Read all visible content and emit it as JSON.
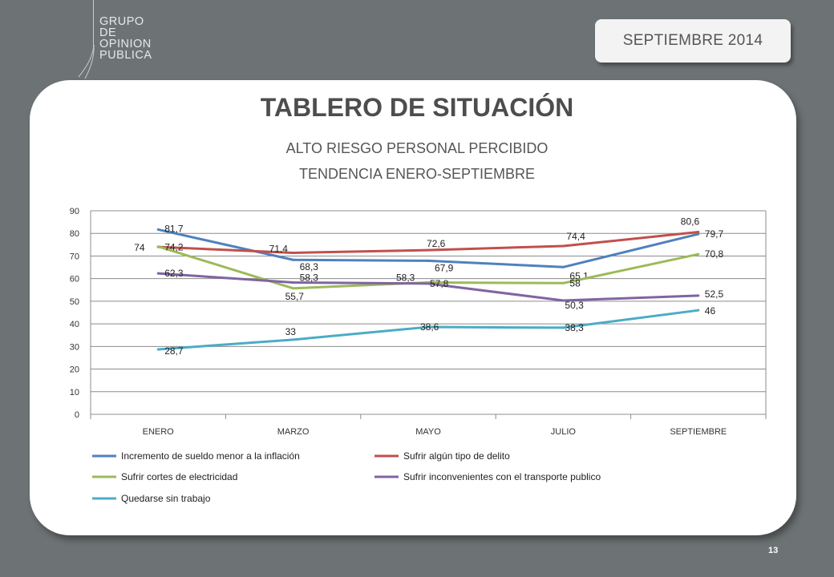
{
  "logo": {
    "lines": [
      "GRUPO",
      "DE",
      "OPINION",
      "PUBLICA"
    ]
  },
  "header": {
    "date": "SEPTIEMBRE  2014"
  },
  "page": {
    "title": "TABLERO DE SITUACIÓN",
    "number": "13"
  },
  "chart_data": {
    "type": "line",
    "title": "ALTO  RIESGO PERSONAL PERCIBIDO",
    "subtitle": "TENDENCIA ENERO-SEPTIEMBRE",
    "xlabel": "",
    "ylabel": "",
    "categories": [
      "ENERO",
      "MARZO",
      "MAYO",
      "JULIO",
      "SEPTIEMBRE"
    ],
    "ylim": [
      0,
      90
    ],
    "yticks": [
      0,
      10,
      20,
      30,
      40,
      50,
      60,
      70,
      80,
      90
    ],
    "grid": true,
    "legend_position": "bottom",
    "series": [
      {
        "name": "Incremento de sueldo menor a la inflación",
        "color": "#4f81bd",
        "values": [
          81.7,
          68.3,
          67.9,
          65.1,
          79.7
        ],
        "labels": [
          "81,7",
          "68,3",
          "67,9",
          "65,1",
          "79,7"
        ]
      },
      {
        "name": "Sufrir algún tipo de delito",
        "color": "#c0504d",
        "values": [
          74,
          71.4,
          72.6,
          74.4,
          80.6
        ],
        "labels": [
          "74",
          "71,4",
          "72,6",
          "74,4",
          "80,6"
        ]
      },
      {
        "name": "Sufrir cortes de electricidad",
        "color": "#9bbb59",
        "values": [
          74.2,
          55.7,
          58.3,
          58,
          70.8
        ],
        "labels": [
          "74,2",
          "55,7",
          "58,3",
          "58",
          "70,8"
        ]
      },
      {
        "name": "Sufrir inconvenientes con el transporte publico",
        "color": "#8064a2",
        "values": [
          62.3,
          58.3,
          57.8,
          50.3,
          52.5
        ],
        "labels": [
          "62,3",
          "58,3",
          "57,8",
          "50,3",
          "52,5"
        ]
      },
      {
        "name": "Quedarse sin trabajo",
        "color": "#4bacc6",
        "values": [
          28.7,
          33,
          38.6,
          38.3,
          46
        ],
        "labels": [
          "28,7",
          "33",
          "38,6",
          "38,3",
          "46"
        ]
      }
    ]
  }
}
